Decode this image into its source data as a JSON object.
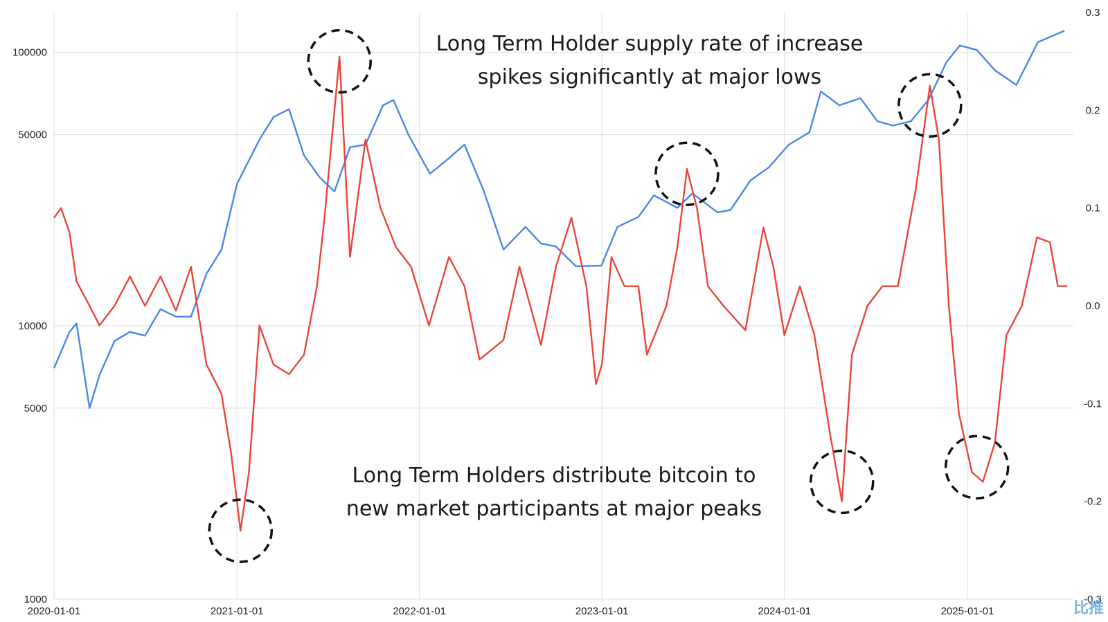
{
  "chart_data": {
    "type": "line",
    "x_range": [
      "2020-01-01",
      "2025-08-01"
    ],
    "xticks": [
      "2020-01-01",
      "2021-01-01",
      "2022-01-01",
      "2023-01-01",
      "2024-01-01",
      "2025-01-01"
    ],
    "y_left": {
      "scale": "log",
      "range": [
        1000,
        140000
      ],
      "ticks": [
        "100000",
        "50000",
        "10000",
        "5000",
        "1000"
      ]
    },
    "y_right": {
      "scale": "linear",
      "range": [
        -0.3,
        0.3
      ],
      "ticks": [
        "0.3",
        "0.2",
        "0.1",
        "0.0",
        "-0.1",
        "-0.2",
        "-0.3"
      ]
    },
    "grid": true,
    "series": [
      {
        "color": "#4a86e8",
        "axis": "left",
        "points": [
          [
            "2020-01-01",
            7000
          ],
          [
            "2020-02-01",
            9500
          ],
          [
            "2020-02-15",
            10200
          ],
          [
            "2020-03-12",
            5000
          ],
          [
            "2020-04-01",
            6600
          ],
          [
            "2020-05-01",
            8800
          ],
          [
            "2020-06-01",
            9500
          ],
          [
            "2020-07-01",
            9200
          ],
          [
            "2020-08-01",
            11500
          ],
          [
            "2020-09-01",
            10800
          ],
          [
            "2020-10-01",
            10800
          ],
          [
            "2020-11-01",
            15500
          ],
          [
            "2020-12-01",
            19000
          ],
          [
            "2021-01-01",
            33000
          ],
          [
            "2021-02-15",
            48000
          ],
          [
            "2021-03-15",
            58000
          ],
          [
            "2021-04-15",
            62000
          ],
          [
            "2021-05-15",
            42000
          ],
          [
            "2021-06-15",
            35000
          ],
          [
            "2021-07-15",
            31000
          ],
          [
            "2021-08-15",
            45000
          ],
          [
            "2021-09-15",
            46000
          ],
          [
            "2021-10-20",
            64000
          ],
          [
            "2021-11-10",
            67000
          ],
          [
            "2021-12-10",
            50000
          ],
          [
            "2022-01-22",
            36000
          ],
          [
            "2022-03-01",
            41000
          ],
          [
            "2022-04-01",
            46000
          ],
          [
            "2022-05-10",
            31000
          ],
          [
            "2022-06-18",
            19000
          ],
          [
            "2022-08-01",
            23000
          ],
          [
            "2022-09-01",
            20000
          ],
          [
            "2022-10-01",
            19500
          ],
          [
            "2022-11-10",
            16500
          ],
          [
            "2022-12-31",
            16600
          ],
          [
            "2023-02-01",
            23000
          ],
          [
            "2023-03-15",
            25000
          ],
          [
            "2023-04-15",
            30000
          ],
          [
            "2023-06-01",
            27000
          ],
          [
            "2023-07-01",
            30500
          ],
          [
            "2023-08-20",
            26000
          ],
          [
            "2023-09-15",
            26500
          ],
          [
            "2023-10-25",
            34000
          ],
          [
            "2023-12-01",
            38000
          ],
          [
            "2024-01-10",
            46000
          ],
          [
            "2024-02-20",
            51000
          ],
          [
            "2024-03-14",
            72000
          ],
          [
            "2024-04-20",
            64000
          ],
          [
            "2024-06-01",
            68000
          ],
          [
            "2024-07-05",
            56000
          ],
          [
            "2024-08-05",
            54000
          ],
          [
            "2024-09-10",
            56000
          ],
          [
            "2024-10-15",
            67000
          ],
          [
            "2024-11-20",
            92000
          ],
          [
            "2024-12-17",
            106000
          ],
          [
            "2025-01-20",
            102000
          ],
          [
            "2025-02-25",
            86000
          ],
          [
            "2025-04-09",
            76000
          ],
          [
            "2025-05-22",
            109000
          ],
          [
            "2025-07-14",
            120000
          ]
        ]
      },
      {
        "color": "#e8453c",
        "axis": "right",
        "points": [
          [
            "2020-01-01",
            0.09
          ],
          [
            "2020-01-15",
            0.1
          ],
          [
            "2020-02-01",
            0.075
          ],
          [
            "2020-02-15",
            0.025
          ],
          [
            "2020-03-12",
            0.0
          ],
          [
            "2020-04-01",
            -0.02
          ],
          [
            "2020-05-01",
            0.0
          ],
          [
            "2020-06-01",
            0.03
          ],
          [
            "2020-07-01",
            0.0
          ],
          [
            "2020-08-01",
            0.03
          ],
          [
            "2020-09-01",
            -0.005
          ],
          [
            "2020-10-01",
            0.04
          ],
          [
            "2020-11-01",
            -0.06
          ],
          [
            "2020-12-01",
            -0.09
          ],
          [
            "2020-12-20",
            -0.15
          ],
          [
            "2021-01-08",
            -0.23
          ],
          [
            "2021-01-25",
            -0.17
          ],
          [
            "2021-02-15",
            -0.02
          ],
          [
            "2021-03-15",
            -0.06
          ],
          [
            "2021-04-15",
            -0.07
          ],
          [
            "2021-05-15",
            -0.05
          ],
          [
            "2021-06-10",
            0.02
          ],
          [
            "2021-06-25",
            0.09
          ],
          [
            "2021-07-25",
            0.255
          ],
          [
            "2021-08-15",
            0.05
          ],
          [
            "2021-09-15",
            0.17
          ],
          [
            "2021-10-15",
            0.1
          ],
          [
            "2021-11-15",
            0.06
          ],
          [
            "2021-12-15",
            0.04
          ],
          [
            "2022-01-20",
            -0.02
          ],
          [
            "2022-03-01",
            0.05
          ],
          [
            "2022-04-01",
            0.02
          ],
          [
            "2022-05-01",
            -0.055
          ],
          [
            "2022-06-18",
            -0.035
          ],
          [
            "2022-07-20",
            0.04
          ],
          [
            "2022-09-01",
            -0.04
          ],
          [
            "2022-10-01",
            0.04
          ],
          [
            "2022-11-01",
            0.09
          ],
          [
            "2022-12-01",
            0.02
          ],
          [
            "2022-12-20",
            -0.08
          ],
          [
            "2023-01-01",
            -0.06
          ],
          [
            "2023-01-20",
            0.05
          ],
          [
            "2023-02-15",
            0.02
          ],
          [
            "2023-03-15",
            0.02
          ],
          [
            "2023-04-01",
            -0.05
          ],
          [
            "2023-05-10",
            0.0
          ],
          [
            "2023-06-01",
            0.06
          ],
          [
            "2023-06-20",
            0.14
          ],
          [
            "2023-07-10",
            0.1
          ],
          [
            "2023-08-01",
            0.02
          ],
          [
            "2023-09-01",
            0.0
          ],
          [
            "2023-10-15",
            -0.025
          ],
          [
            "2023-11-20",
            0.08
          ],
          [
            "2023-12-10",
            0.04
          ],
          [
            "2024-01-01",
            -0.03
          ],
          [
            "2024-02-01",
            0.02
          ],
          [
            "2024-03-01",
            -0.03
          ],
          [
            "2024-04-01",
            -0.13
          ],
          [
            "2024-04-25",
            -0.2
          ],
          [
            "2024-05-15",
            -0.05
          ],
          [
            "2024-06-15",
            0.0
          ],
          [
            "2024-07-15",
            0.02
          ],
          [
            "2024-08-15",
            0.02
          ],
          [
            "2024-09-20",
            0.12
          ],
          [
            "2024-10-18",
            0.225
          ],
          [
            "2024-11-05",
            0.17
          ],
          [
            "2024-11-25",
            0.0
          ],
          [
            "2024-12-15",
            -0.11
          ],
          [
            "2025-01-10",
            -0.17
          ],
          [
            "2025-02-01",
            -0.18
          ],
          [
            "2025-02-25",
            -0.14
          ],
          [
            "2025-03-20",
            -0.03
          ],
          [
            "2025-04-20",
            0.0
          ],
          [
            "2025-05-20",
            0.07
          ],
          [
            "2025-06-15",
            0.065
          ],
          [
            "2025-07-01",
            0.02
          ],
          [
            "2025-07-20",
            0.02
          ]
        ]
      }
    ]
  },
  "annotations": {
    "top_text": [
      "Long Term Holder supply rate of increase",
      "spikes significantly at major lows"
    ],
    "bottom_text": [
      "Long Term Holders distribute bitcoin to",
      "new market participants at major peaks"
    ]
  },
  "highlight_circles": [
    {
      "date": "2021-01-08",
      "value": -0.23,
      "axis": "right"
    },
    {
      "date": "2021-07-25",
      "value": 0.25,
      "axis": "right"
    },
    {
      "date": "2023-06-20",
      "value": 0.135,
      "axis": "right"
    },
    {
      "date": "2024-04-25",
      "value": -0.18,
      "axis": "right"
    },
    {
      "date": "2024-10-18",
      "value": 0.205,
      "axis": "right"
    },
    {
      "date": "2025-01-20",
      "value": -0.165,
      "axis": "right"
    }
  ],
  "watermark": {
    "logo": "bird-logo-icon",
    "text": "比推",
    "color": "#5fa8e0"
  }
}
